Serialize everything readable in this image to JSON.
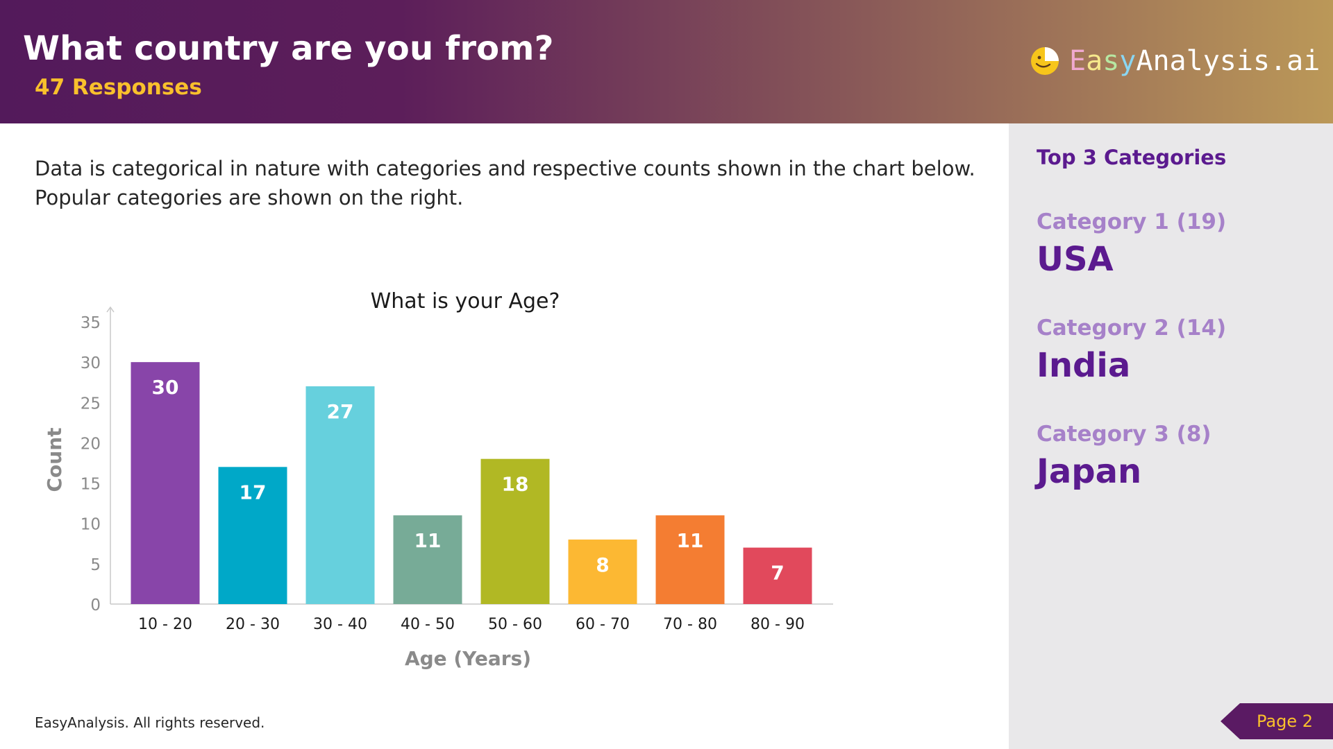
{
  "header": {
    "title": "What country are you from?",
    "responses": "47 Responses",
    "logo_parts": [
      "E",
      "a",
      "s",
      "y",
      "Analysis.ai"
    ]
  },
  "description": {
    "line1": "Data is categorical in nature with categories and respective counts shown in the chart below.",
    "line2": "Popular categories are shown on the right."
  },
  "sidebar": {
    "heading": "Top 3 Categories",
    "categories": [
      {
        "label": "Category 1 (19)",
        "value": "USA"
      },
      {
        "label": "Category 2 (14)",
        "value": "India"
      },
      {
        "label": "Category 3 (8)",
        "value": "Japan"
      }
    ]
  },
  "chart_data": {
    "type": "bar",
    "title": "What is your Age?",
    "xlabel": "Age (Years)",
    "ylabel": "Count",
    "categories": [
      "10 - 20",
      "20 - 30",
      "30 - 40",
      "40 - 50",
      "50 - 60",
      "60 - 70",
      "70 - 80",
      "80 - 90"
    ],
    "values": [
      30,
      17,
      27,
      11,
      18,
      8,
      11,
      7
    ],
    "colors": [
      "#8845a9",
      "#00a8c8",
      "#66d0dd",
      "#77ab97",
      "#b1b824",
      "#fcb833",
      "#f47d32",
      "#e1495c"
    ],
    "ylim": [
      0,
      35
    ],
    "yticks": [
      0,
      5,
      10,
      15,
      20,
      25,
      30,
      35
    ],
    "grid": false,
    "data_labels": true
  },
  "footer": {
    "copyright": "EasyAnalysis. All rights reserved.",
    "page": "Page 2"
  },
  "colors": {
    "header_start": "#531a5b",
    "header_end": "#bb9858",
    "accent_yellow": "#f9c02c",
    "accent_purple": "#5b1a8f",
    "category_label": "#a681c9",
    "sidebar_bg": "#e9e8ea"
  }
}
